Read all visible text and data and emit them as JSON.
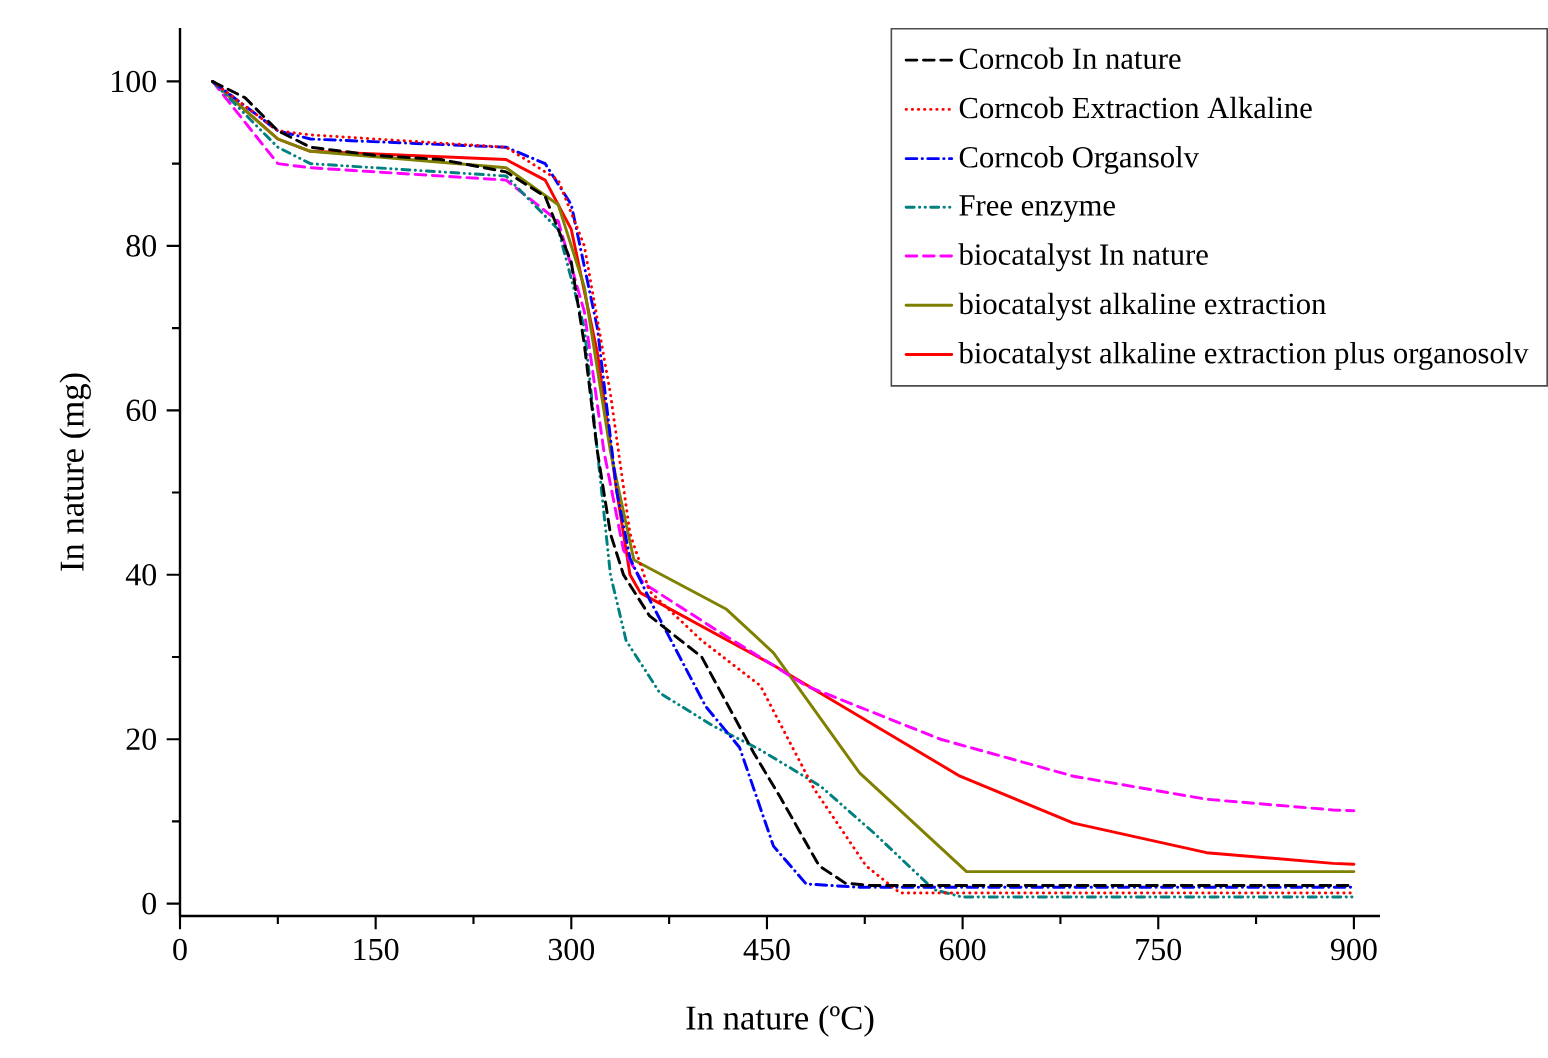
{
  "chart_data": {
    "type": "line",
    "xlabel": "In nature (ºC)",
    "ylabel": "In nature (mg)",
    "xlim": [
      0,
      920
    ],
    "ylim": [
      -1.5,
      106.5
    ],
    "xticks": [
      0,
      150,
      300,
      450,
      600,
      750,
      900
    ],
    "yticks": [
      0,
      20,
      40,
      60,
      80,
      100
    ],
    "grid": false,
    "legend": "top right",
    "marker": "none",
    "series": [
      {
        "name": "Corncob In nature",
        "color": "#000000",
        "line_style": "dashed",
        "x": [
          25,
          50,
          75,
          100,
          150,
          200,
          250,
          280,
          300,
          310,
          320,
          330,
          340,
          360,
          400,
          440,
          460,
          490,
          510,
          530,
          600,
          900
        ],
        "values": [
          100,
          98,
          94,
          92,
          91,
          90.5,
          89,
          86,
          78,
          68,
          55,
          45,
          40,
          35,
          30,
          18.3,
          13,
          4.6,
          2.5,
          2.2,
          2.2,
          2.2
        ]
      },
      {
        "name": "Corncob Extraction Alkaline",
        "color": "#ff0000",
        "line_style": "dotted",
        "x": [
          25,
          75,
          100,
          250,
          290,
          310,
          330,
          345,
          360,
          400,
          445,
          486,
          526,
          552,
          600,
          900
        ],
        "values": [
          100,
          94,
          93.5,
          92,
          88,
          80,
          62,
          45,
          38,
          32,
          26.5,
          14,
          4.6,
          1.3,
          1.3,
          1.3
        ]
      },
      {
        "name": "Corncob Organsolv",
        "color": "#0000ff",
        "line_style": "dashdot",
        "x": [
          25,
          75,
          100,
          250,
          280,
          300,
          320,
          335,
          345,
          360,
          403,
          429,
          455,
          480,
          520,
          900
        ],
        "values": [
          100,
          94,
          93,
          92,
          90,
          85,
          70,
          50,
          42,
          37,
          24,
          19,
          7,
          2.4,
          2,
          2
        ]
      },
      {
        "name": "Free enzyme",
        "color": "#008080",
        "line_style": "dashdotdot",
        "x": [
          25,
          75,
          100,
          250,
          290,
          310,
          320,
          330,
          342,
          368,
          409,
          445,
          491,
          532,
          578,
          600,
          900
        ],
        "values": [
          100,
          92,
          90,
          88.5,
          82,
          70,
          55,
          40,
          32,
          25.6,
          21.6,
          18.7,
          14.3,
          8.6,
          1.7,
          0.8,
          0.8
        ]
      },
      {
        "name": "biocatalyst In nature",
        "color": "#ff00ff",
        "line_style": "dashed",
        "x": [
          25,
          75,
          100,
          250,
          290,
          310,
          325,
          340,
          355,
          414,
          480,
          583,
          685,
          787,
          884,
          900
        ],
        "values": [
          100,
          90,
          89.5,
          88,
          83,
          72,
          55,
          43,
          39,
          33,
          26.5,
          20,
          15.5,
          12.7,
          11.4,
          11.3
        ]
      },
      {
        "name": "biocatalyst alkaline extraction",
        "color": "#808000",
        "line_style": "solid",
        "x": [
          25,
          75,
          100,
          250,
          290,
          310,
          330,
          348,
          419,
          455,
          521,
          603,
          900
        ],
        "values": [
          100,
          93,
          91.5,
          89.5,
          85,
          75,
          55,
          41.8,
          35.8,
          30.5,
          15.9,
          3.9,
          3.9
        ]
      },
      {
        "name": "biocatalyst alkaline extraction plus organosolv",
        "color": "#ff0000",
        "line_style": "solid",
        "x": [
          25,
          75,
          100,
          250,
          280,
          300,
          320,
          335,
          345,
          353,
          455,
          598,
          685,
          787,
          884,
          900
        ],
        "values": [
          100,
          93,
          91.5,
          90.5,
          88,
          82,
          67,
          50,
          40,
          37.8,
          29,
          15.5,
          9.8,
          6.2,
          4.9,
          4.8
        ]
      }
    ]
  }
}
